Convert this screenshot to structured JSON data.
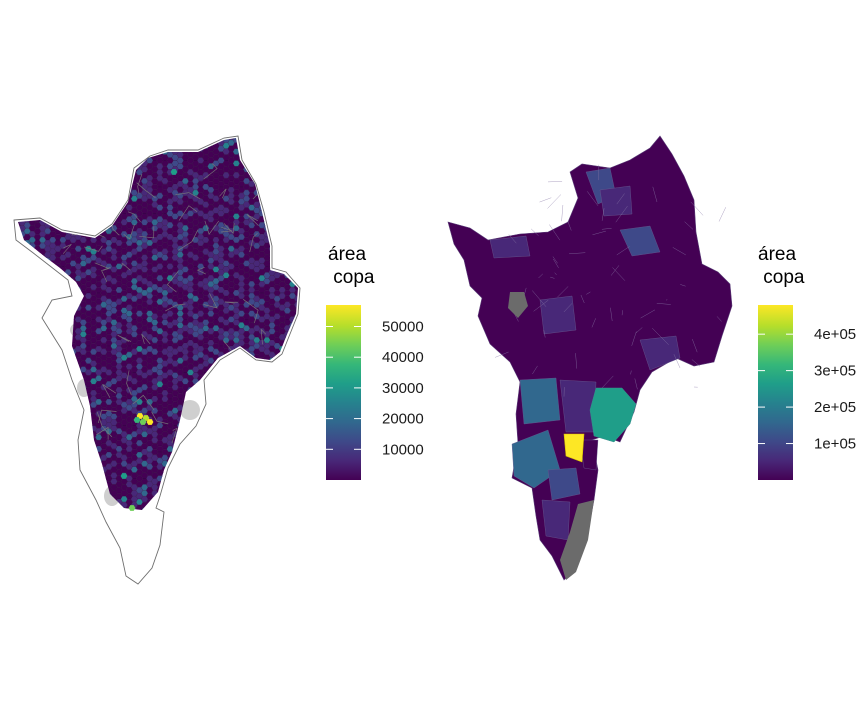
{
  "maps": [
    {
      "type": "hexbin-choropleth",
      "legend": {
        "title_line1": "área",
        "title_line2": " copa",
        "ticks": [
          "10000",
          "20000",
          "30000",
          "40000",
          "50000"
        ],
        "tick_values": [
          10000,
          20000,
          30000,
          40000,
          50000
        ],
        "range": [
          0,
          57000
        ]
      },
      "colors": {
        "palette": "viridis",
        "outline": "#6e6e6e",
        "missing": "#cfcfcf"
      }
    },
    {
      "type": "polygon-choropleth",
      "legend": {
        "title_line1": "área",
        "title_line2": " copa",
        "ticks": [
          "1e+05",
          "2e+05",
          "3e+05",
          "4e+05"
        ],
        "tick_values": [
          100000,
          200000,
          300000,
          400000
        ],
        "range": [
          0,
          480000
        ]
      },
      "colors": {
        "palette": "viridis",
        "missing": "#6b6b6b"
      }
    }
  ],
  "colors": {
    "viridis": [
      "#440154",
      "#482878",
      "#3e4989",
      "#31688e",
      "#26828e",
      "#1f9e89",
      "#35b779",
      "#6ece58",
      "#b5de2b",
      "#fde725"
    ]
  }
}
